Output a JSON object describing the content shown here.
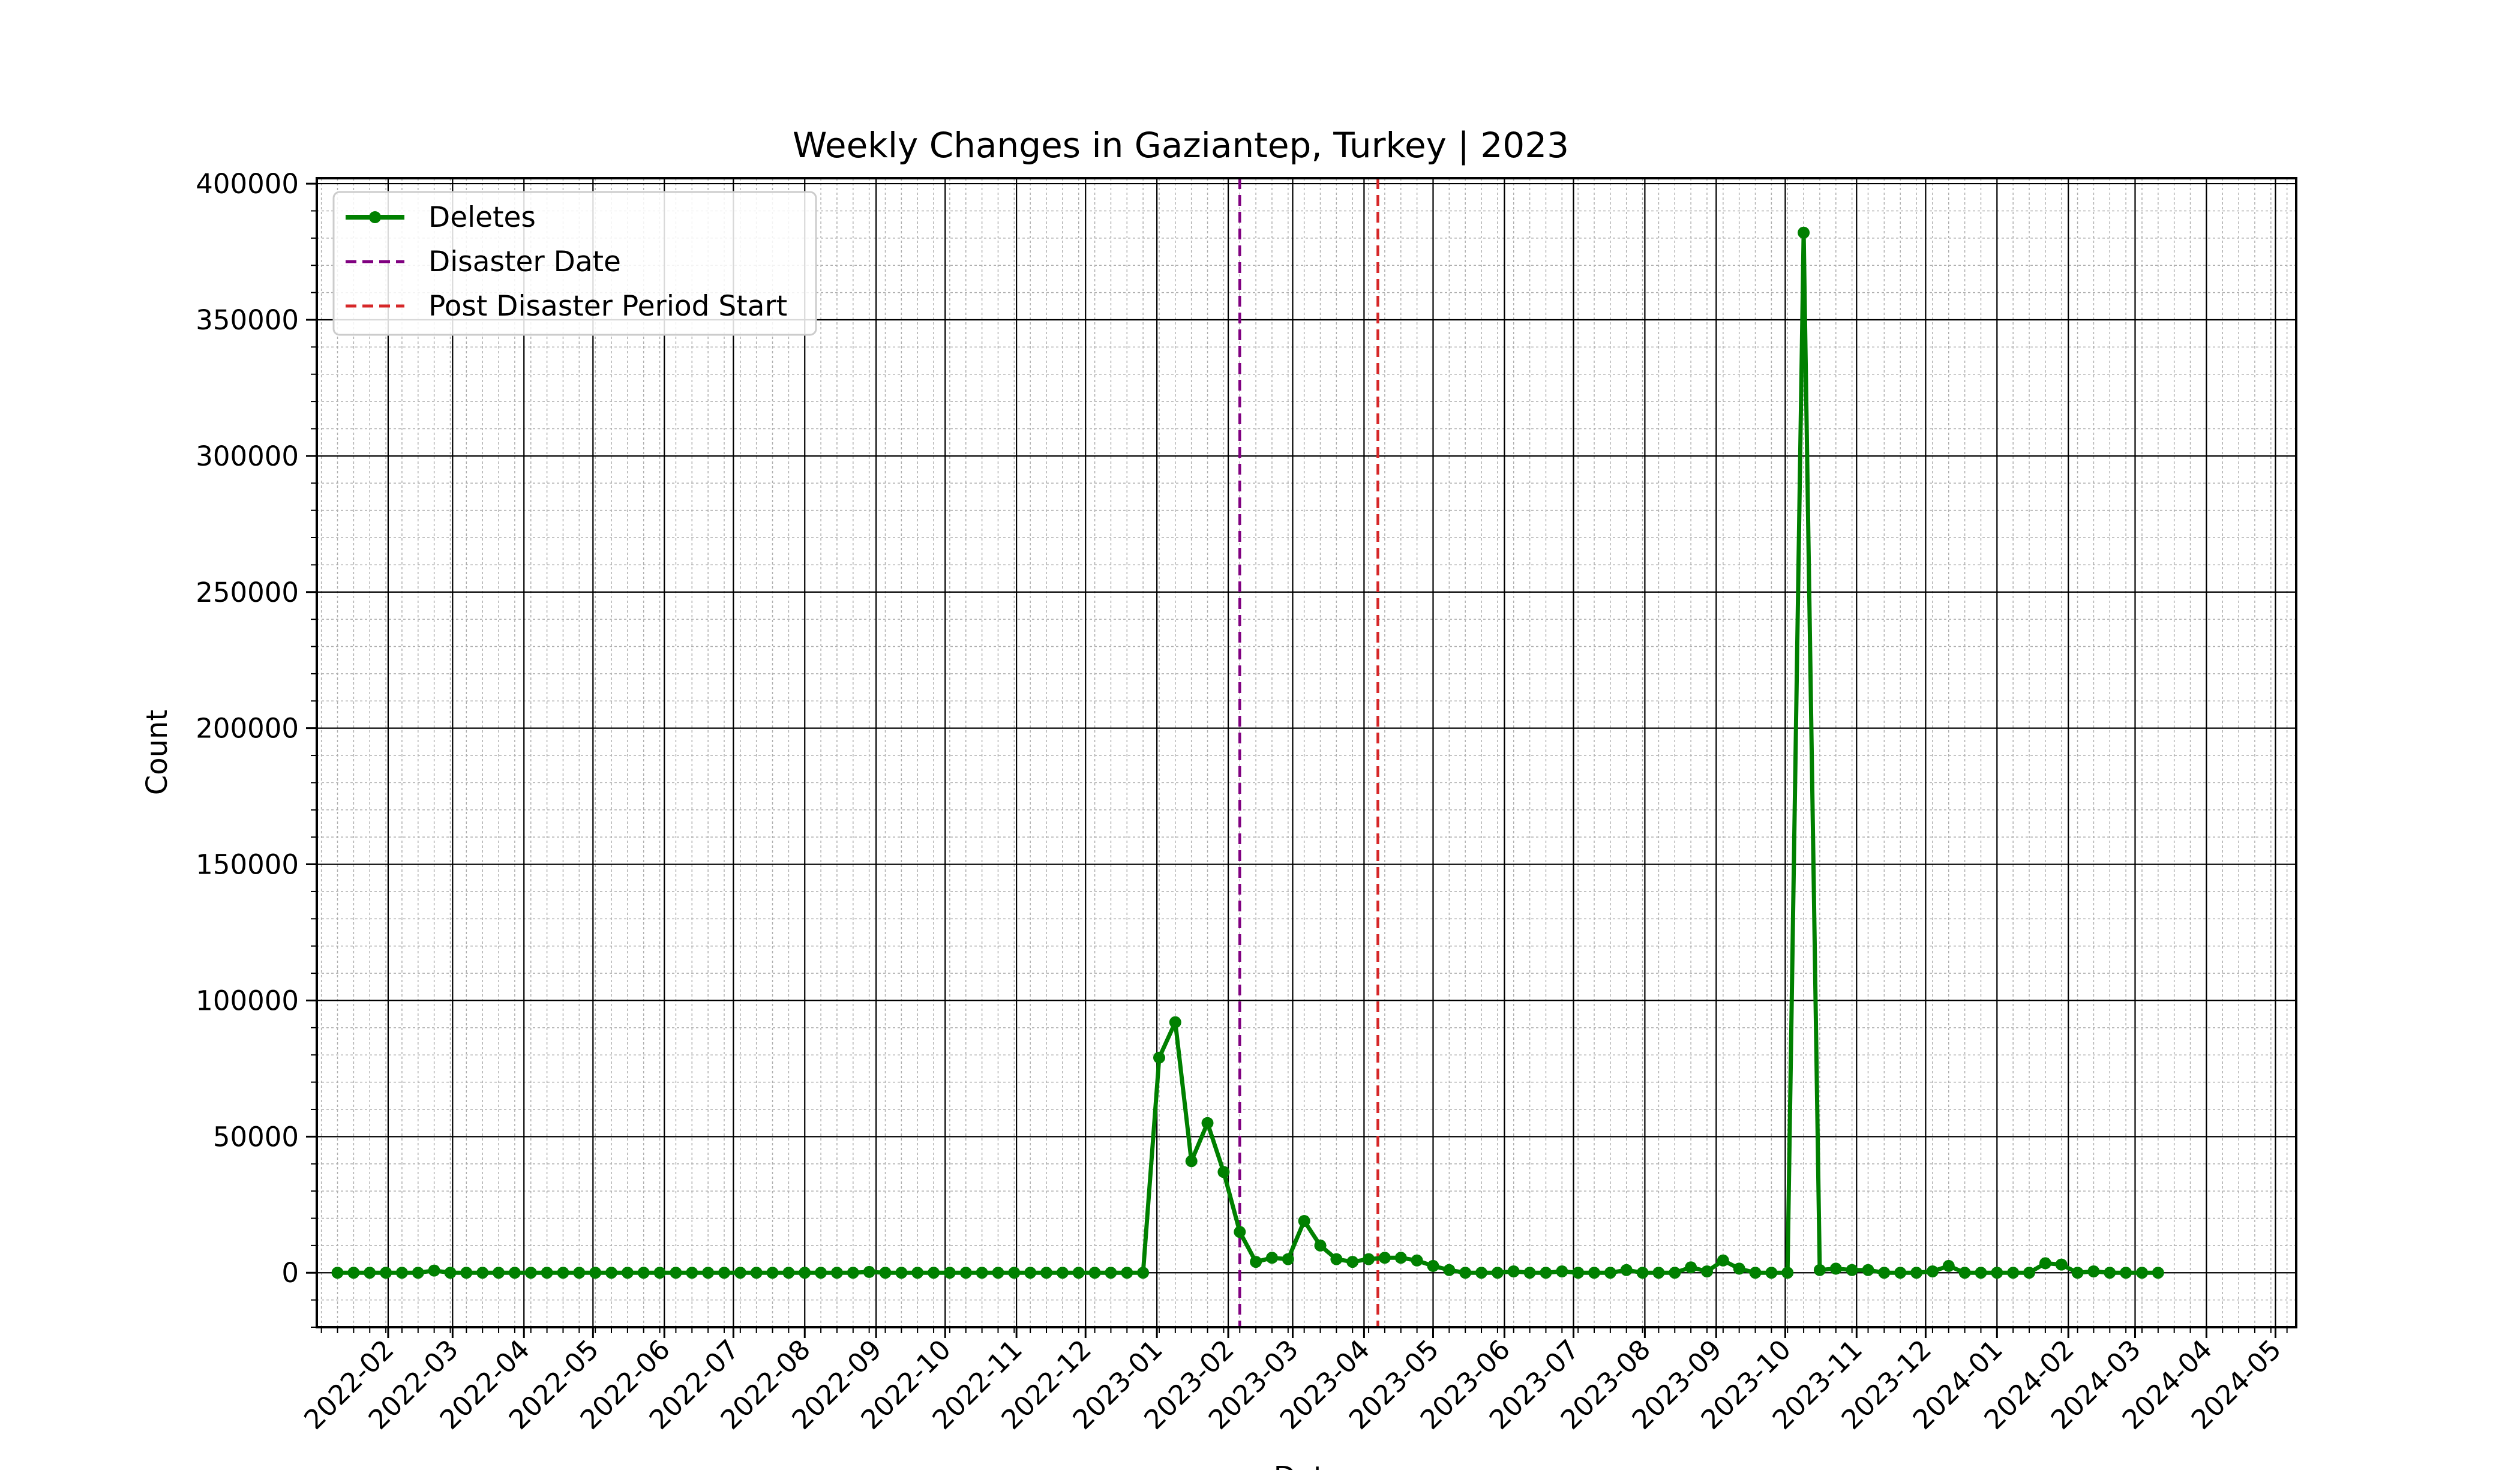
{
  "chart_data": {
    "type": "line",
    "title": "Weekly Changes in Gaziantep, Turkey | 2023",
    "xlabel": "Date",
    "ylabel": "Count",
    "xlim": [
      "2022-01-01",
      "2024-05-10"
    ],
    "ylim": [
      -20000,
      402000
    ],
    "grid": {
      "major": true,
      "minor": true
    },
    "legend_position": "top-left",
    "x_tick_labels": [
      "2022-02",
      "2022-03",
      "2022-04",
      "2022-05",
      "2022-06",
      "2022-07",
      "2022-08",
      "2022-09",
      "2022-10",
      "2022-11",
      "2022-12",
      "2023-01",
      "2023-02",
      "2023-03",
      "2023-04",
      "2023-05",
      "2023-06",
      "2023-07",
      "2023-08",
      "2023-09",
      "2023-10",
      "2023-11",
      "2023-12",
      "2024-01",
      "2024-02",
      "2024-03",
      "2024-04",
      "2024-05"
    ],
    "y_ticks": [
      0,
      50000,
      100000,
      150000,
      200000,
      250000,
      300000,
      350000,
      400000
    ],
    "series": [
      {
        "name": "Deletes",
        "color": "#008000",
        "start_date": "2022-01-10",
        "interval_days": 7,
        "values": [
          0,
          0,
          0,
          0,
          0,
          0,
          800,
          0,
          0,
          0,
          0,
          0,
          0,
          0,
          0,
          0,
          0,
          0,
          0,
          0,
          0,
          0,
          0,
          0,
          0,
          0,
          0,
          0,
          0,
          0,
          0,
          0,
          0,
          300,
          0,
          0,
          0,
          0,
          0,
          0,
          0,
          0,
          0,
          0,
          0,
          0,
          0,
          0,
          0,
          0,
          0,
          79000,
          92000,
          41000,
          55000,
          37000,
          15000,
          4000,
          5500,
          5000,
          19000,
          10000,
          5000,
          4000,
          5000,
          5500,
          5500,
          4500,
          2500,
          1000,
          0,
          0,
          0,
          500,
          0,
          0,
          500,
          0,
          0,
          0,
          1000,
          0,
          0,
          0,
          2000,
          500,
          4500,
          1500,
          0,
          0,
          0,
          382000,
          1000,
          1500,
          1000,
          1000,
          0,
          0,
          0,
          500,
          2500,
          0,
          0,
          0,
          0,
          0,
          3500,
          3000,
          0,
          500,
          0,
          0,
          0,
          0
        ]
      }
    ],
    "reference_lines": [
      {
        "name": "Disaster Date",
        "date": "2023-02-06",
        "color": "#800080"
      },
      {
        "name": "Post Disaster Period Start",
        "date": "2023-04-07",
        "color": "#d62728"
      }
    ]
  }
}
